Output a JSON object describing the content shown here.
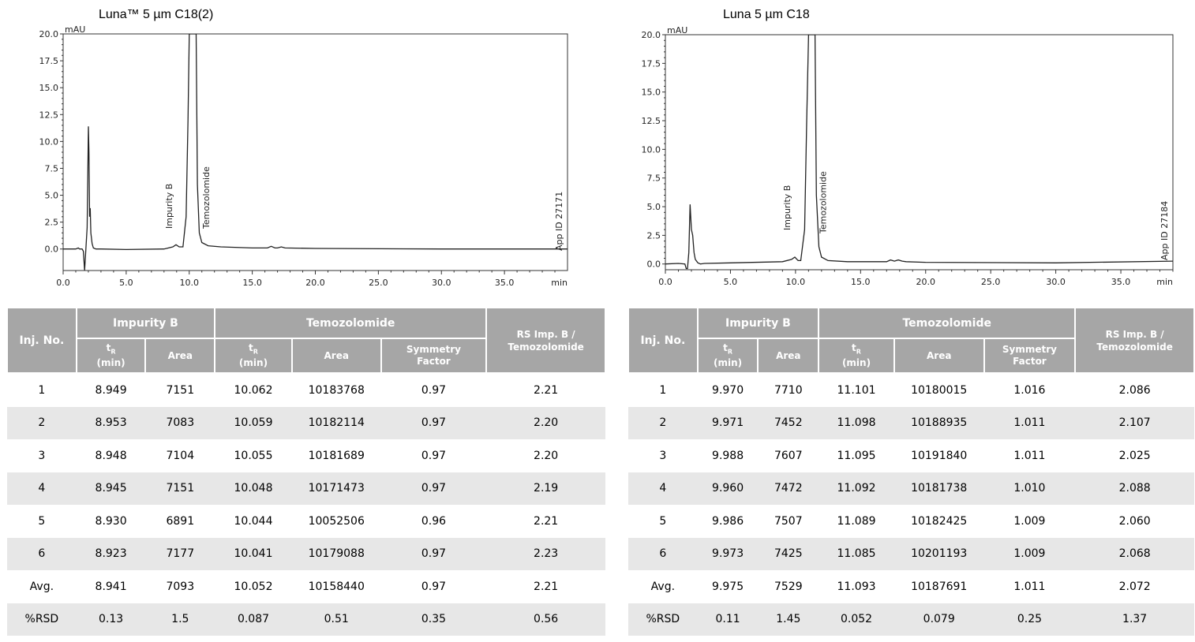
{
  "colors": {
    "header_bg": "#a6a6a6",
    "header_text": "#ffffff",
    "stripe": "#e7e7e7",
    "trace": "#222222"
  },
  "panels": [
    {
      "title": "Luna™ 5 µm C18(2)",
      "app_id": "App ID 27171",
      "peak_labels": [
        "Impurity B",
        "Temozolomide"
      ],
      "table": {
        "inj_header": "Inj. No.",
        "group_headers": [
          "Impurity B",
          "Temozolomide"
        ],
        "rs_header_l1": "RS Imp. B /",
        "rs_header_l2": "Temozolomide",
        "sub_headers": {
          "tr_main": "t",
          "tr_sub": "R",
          "tr_unit": "(min)",
          "area": "Area",
          "sym_l1": "Symmetry",
          "sym_l2": "Factor"
        },
        "rows": [
          [
            "1",
            "8.949",
            "7151",
            "10.062",
            "10183768",
            "0.97",
            "2.21"
          ],
          [
            "2",
            "8.953",
            "7083",
            "10.059",
            "10182114",
            "0.97",
            "2.20"
          ],
          [
            "3",
            "8.948",
            "7104",
            "10.055",
            "10181689",
            "0.97",
            "2.20"
          ],
          [
            "4",
            "8.945",
            "7151",
            "10.048",
            "10171473",
            "0.97",
            "2.19"
          ],
          [
            "5",
            "8.930",
            "6891",
            "10.044",
            "10052506",
            "0.96",
            "2.21"
          ],
          [
            "6",
            "8.923",
            "7177",
            "10.041",
            "10179088",
            "0.97",
            "2.23"
          ],
          [
            "Avg.",
            "8.941",
            "7093",
            "10.052",
            "10158440",
            "0.97",
            "2.21"
          ],
          [
            "%RSD",
            "0.13",
            "1.5",
            "0.087",
            "0.51",
            "0.35",
            "0.56"
          ]
        ]
      }
    },
    {
      "title": "Luna 5 µm C18",
      "app_id": "App ID 27184",
      "peak_labels": [
        "Impurity B",
        "Temozolomide"
      ],
      "table": {
        "inj_header": "Inj. No.",
        "group_headers": [
          "Impurity B",
          "Temozolomide"
        ],
        "rs_header_l1": "RS Imp. B /",
        "rs_header_l2": "Temozolomide",
        "sub_headers": {
          "tr_main": "t",
          "tr_sub": "R",
          "tr_unit": "(min)",
          "area": "Area",
          "sym_l1": "Symmetry",
          "sym_l2": "Factor"
        },
        "rows": [
          [
            "1",
            "9.970",
            "7710",
            "11.101",
            "10180015",
            "1.016",
            "2.086"
          ],
          [
            "2",
            "9.971",
            "7452",
            "11.098",
            "10188935",
            "1.011",
            "2.107"
          ],
          [
            "3",
            "9.988",
            "7607",
            "11.095",
            "10191840",
            "1.011",
            "2.025"
          ],
          [
            "4",
            "9.960",
            "7472",
            "11.092",
            "10181738",
            "1.010",
            "2.088"
          ],
          [
            "5",
            "9.986",
            "7507",
            "11.089",
            "10182425",
            "1.009",
            "2.060"
          ],
          [
            "6",
            "9.973",
            "7425",
            "11.085",
            "10201193",
            "1.009",
            "2.068"
          ],
          [
            "Avg.",
            "9.975",
            "7529",
            "11.093",
            "10187691",
            "1.011",
            "2.072"
          ],
          [
            "%RSD",
            "0.11",
            "1.45",
            "0.052",
            "0.079",
            "0.25",
            "1.37"
          ]
        ]
      }
    }
  ],
  "chart_data": [
    {
      "type": "line",
      "title": "Luna™ 5 µm C18(2)",
      "xlabel": "min",
      "ylabel": "mAU",
      "xlim": [
        0,
        40
      ],
      "ylim": [
        -2,
        20
      ],
      "xticks": [
        "0.0",
        "5.0",
        "10.0",
        "15.0",
        "20.0",
        "25.0",
        "30.0",
        "35.0",
        "min"
      ],
      "yticks": [
        "0.0",
        "2.5",
        "5.0",
        "7.5",
        "10.0",
        "12.5",
        "15.0",
        "17.5",
        "20.0"
      ],
      "annotations": [
        "Impurity B",
        "Temozolomide",
        "App ID 27171"
      ],
      "series": [
        {
          "x": [
            0,
            1.0,
            1.2,
            1.3,
            1.5,
            1.6,
            1.7,
            1.8,
            1.9,
            2.0,
            2.05,
            2.1,
            2.15,
            2.2,
            2.3,
            2.4,
            2.6,
            3.0,
            5.0,
            8.0,
            8.7,
            8.95,
            9.2,
            9.5,
            9.75,
            9.9,
            10.0,
            10.55,
            10.65,
            10.8,
            11.0,
            11.5,
            12.5,
            15.0,
            16.2,
            16.5,
            16.8,
            17.0,
            17.3,
            17.6,
            20.0,
            30.0,
            40.0
          ],
          "y": [
            0,
            0,
            0.1,
            0.0,
            0.0,
            -0.2,
            -2.0,
            0.0,
            2.0,
            11.4,
            9.0,
            3.0,
            3.8,
            1.5,
            0.5,
            0.1,
            0.0,
            0.0,
            -0.05,
            0.0,
            0.2,
            0.4,
            0.2,
            0.2,
            3.0,
            12.0,
            20.0,
            20.0,
            6.0,
            1.5,
            0.6,
            0.3,
            0.2,
            0.1,
            0.1,
            0.25,
            0.1,
            0.1,
            0.2,
            0.1,
            0.05,
            0.0,
            0.0
          ]
        }
      ]
    },
    {
      "type": "line",
      "title": "Luna 5 µm C18",
      "xlabel": "min",
      "ylabel": "mAU",
      "xlim": [
        0,
        39
      ],
      "ylim": [
        -0.5,
        20
      ],
      "xticks": [
        "0.0",
        "5.0",
        "10.0",
        "15.0",
        "20.0",
        "25.0",
        "30.0",
        "35.0",
        "min"
      ],
      "yticks": [
        "0.0",
        "2.5",
        "5.0",
        "7.5",
        "10.0",
        "12.5",
        "15.0",
        "17.5",
        "20.0"
      ],
      "annotations": [
        "Impurity B",
        "Temozolomide",
        "App ID 27184"
      ],
      "series": [
        {
          "x": [
            0,
            1.0,
            1.5,
            1.6,
            1.7,
            1.8,
            1.9,
            2.0,
            2.1,
            2.2,
            2.3,
            2.5,
            2.7,
            3.0,
            5.0,
            9.0,
            9.7,
            9.95,
            10.2,
            10.4,
            10.7,
            10.85,
            11.0,
            11.5,
            11.6,
            11.8,
            12.0,
            12.5,
            14.0,
            17.0,
            17.3,
            17.6,
            17.9,
            18.2,
            18.5,
            20.0,
            30.0,
            39.0
          ],
          "y": [
            0,
            0.05,
            0.0,
            -0.4,
            -0.4,
            1.0,
            5.2,
            3.0,
            2.5,
            1.0,
            0.4,
            0.1,
            0.0,
            0.05,
            0.1,
            0.2,
            0.4,
            0.6,
            0.3,
            0.3,
            3.0,
            12.0,
            20.0,
            20.0,
            6.0,
            1.5,
            0.6,
            0.3,
            0.2,
            0.2,
            0.35,
            0.25,
            0.35,
            0.25,
            0.2,
            0.15,
            0.1,
            0.25
          ]
        }
      ]
    }
  ]
}
